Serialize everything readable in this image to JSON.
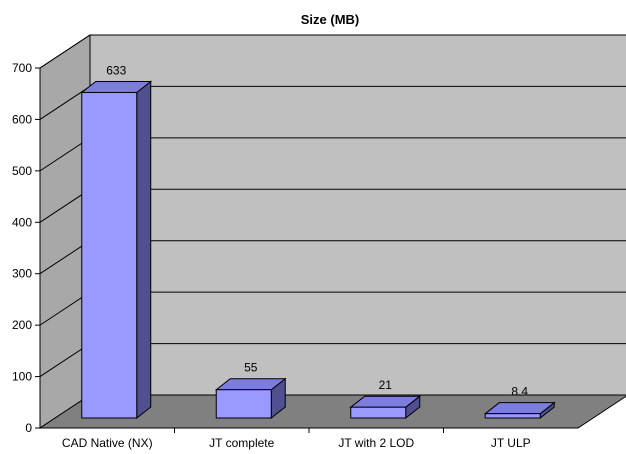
{
  "chart_data": {
    "type": "bar",
    "title": "Size (MB)",
    "categories": [
      "CAD Native (NX)",
      "JT complete",
      "JT with 2 LOD",
      "JT ULP"
    ],
    "values": [
      633,
      55,
      21,
      8.4
    ],
    "data_labels": [
      "633",
      "55",
      "21",
      "8.4"
    ],
    "xlabel": "",
    "ylabel": "",
    "ylim": [
      0,
      700
    ],
    "yticks": [
      "0",
      "100",
      "200",
      "300",
      "400",
      "500",
      "600",
      "700"
    ],
    "grid": true,
    "legend": "none",
    "style": "3d-clustered-column",
    "colors": {
      "bar_front": "#9999ff",
      "bar_top": "#7d7de0",
      "bar_side": "#505090",
      "wall": "#c0c0c0",
      "floor": "#808080"
    }
  }
}
